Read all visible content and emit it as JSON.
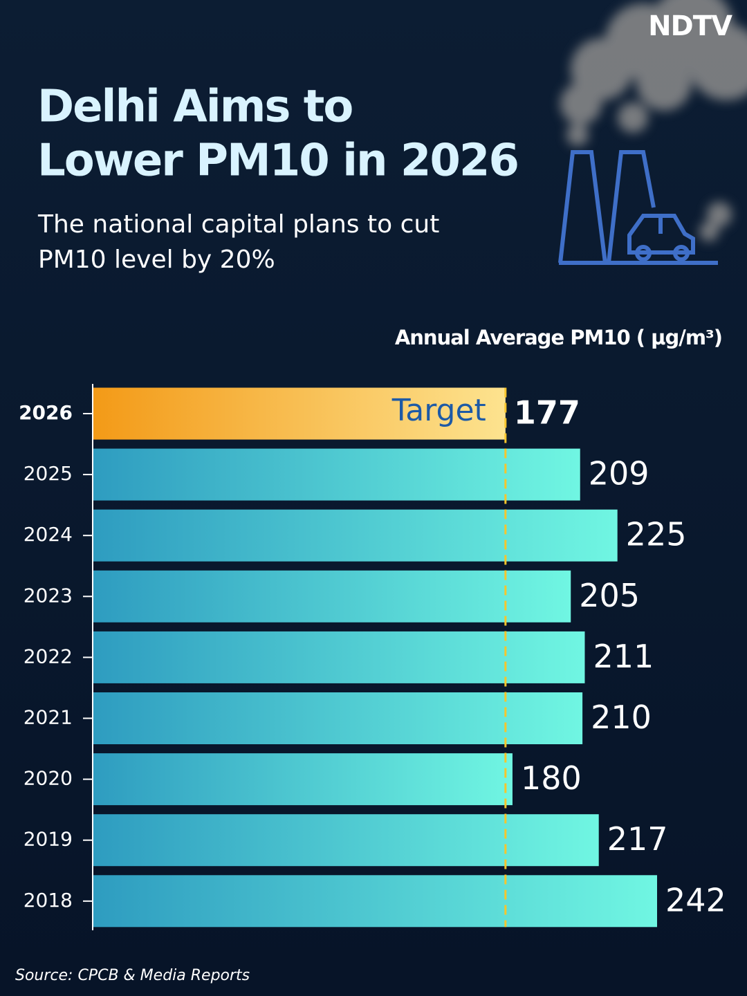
{
  "logo": "NDTV",
  "chart_data": {
    "type": "bar",
    "orientation": "horizontal",
    "title": [
      "Delhi Aims to",
      "Lower PM10 in 2026"
    ],
    "subtitle": [
      "The national capital plans to cut",
      "PM10 level by 20%"
    ],
    "x_label": "Annual Average PM10 ( µg/m³)",
    "annotation": "Target",
    "source": "Source: CPCB & Media Reports",
    "categories": [
      "2026",
      "2025",
      "2024",
      "2023",
      "2022",
      "2021",
      "2020",
      "2019",
      "2018"
    ],
    "values": [
      177,
      209,
      225,
      205,
      211,
      210,
      180,
      217,
      242
    ],
    "xlim": [
      0,
      242
    ]
  }
}
